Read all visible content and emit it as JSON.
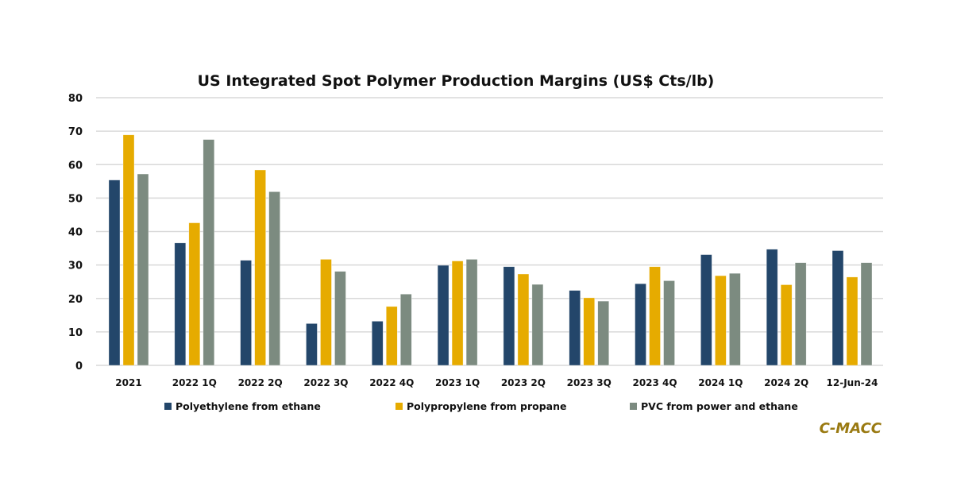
{
  "chart_data": {
    "type": "bar",
    "title": "US Integrated Spot Polymer Production Margins (US$ Cts/lb)",
    "xlabel": "",
    "ylabel": "",
    "ylim": [
      0,
      80
    ],
    "yticks": [
      0,
      10,
      20,
      30,
      40,
      50,
      60,
      70,
      80
    ],
    "grid": true,
    "legend_position": "bottom",
    "categories": [
      "2021",
      "2022 1Q",
      "2022 2Q",
      "2022 3Q",
      "2022 4Q",
      "2023 1Q",
      "2023 2Q",
      "2023 3Q",
      "2023 4Q",
      "2024 1Q",
      "2024 2Q",
      "12-Jun-24"
    ],
    "series": [
      {
        "name": "Polyethylene from ethane",
        "color": "#23466a",
        "values": [
          55.4,
          36.6,
          31.4,
          12.5,
          13.2,
          29.9,
          29.5,
          22.4,
          24.4,
          33.1,
          34.7,
          34.3
        ]
      },
      {
        "name": "Polypropylene from propane",
        "color": "#e6ab00",
        "values": [
          68.9,
          42.6,
          58.4,
          31.7,
          17.6,
          31.2,
          27.3,
          20.2,
          29.5,
          26.8,
          24.1,
          26.4
        ]
      },
      {
        "name": "PVC from power and ethane",
        "color": "#7c8b80",
        "values": [
          57.2,
          67.5,
          51.9,
          28.1,
          21.3,
          31.7,
          24.2,
          19.2,
          25.3,
          27.5,
          30.7,
          30.7
        ]
      }
    ],
    "source_brand": "C-MACC",
    "brand_color": "#9a7a12"
  }
}
